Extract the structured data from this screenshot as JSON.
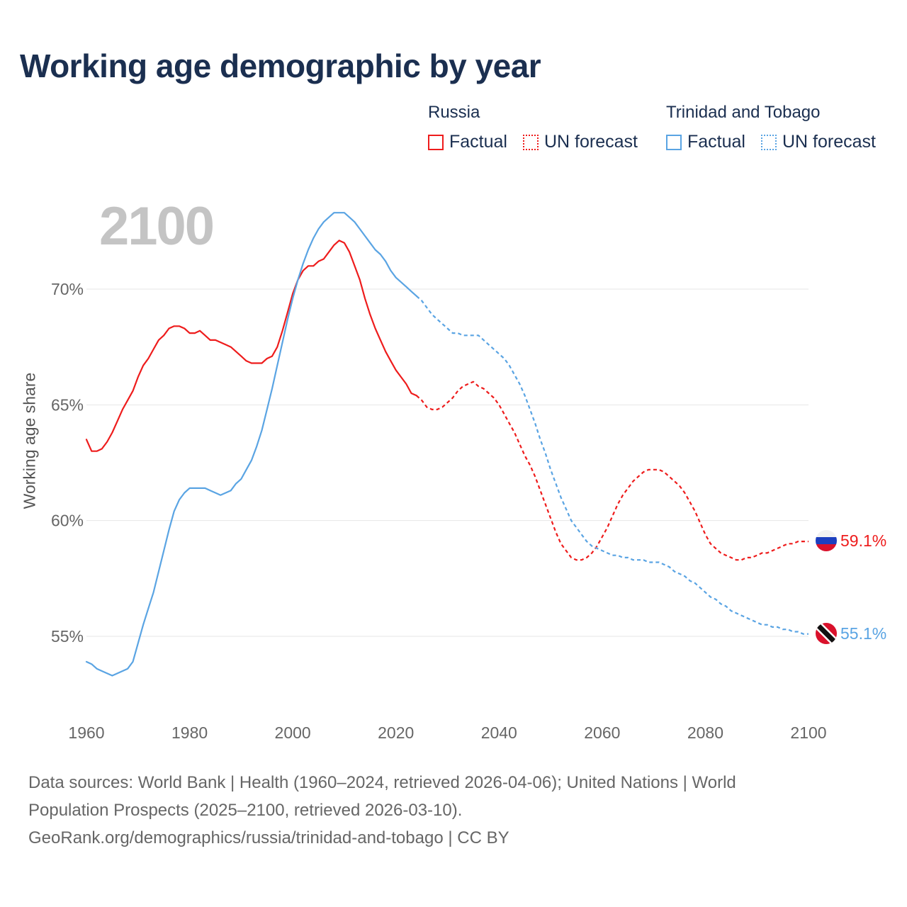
{
  "title": "Working age demographic by year",
  "year_display": "2100",
  "legend": [
    {
      "group": "Russia",
      "factual": "Factual",
      "forecast": "UN forecast",
      "color": "#ee1c1c"
    },
    {
      "group": "Trinidad and Tobago",
      "factual": "Factual",
      "forecast": "UN forecast",
      "color": "#5aa4e3"
    }
  ],
  "footer": {
    "line1": "Data sources: World Bank | Health (1960–2024, retrieved 2026-04-06); United Nations | World",
    "line2": "Population Prospects (2025–2100, retrieved 2026-03-10).",
    "line3": "GeoRank.org/demographics/russia/trinidad-and-tobago | CC BY"
  },
  "chart_data": {
    "type": "line",
    "title": "Working age demographic by year",
    "xlabel": "",
    "ylabel": "Working age share",
    "xlim": [
      1960,
      2100
    ],
    "ylim": [
      52,
      73
    ],
    "x_ticks": [
      1960,
      1980,
      2000,
      2020,
      2040,
      2060,
      2080,
      2100
    ],
    "x_tick_labels": [
      "1960",
      "1980",
      "2000",
      "2020",
      "2040",
      "2060",
      "2080",
      "2100"
    ],
    "y_ticks": [
      55,
      60,
      65,
      70
    ],
    "y_tick_labels": [
      "55%",
      "60%",
      "65%",
      "70%"
    ],
    "grid": true,
    "forecast_start": 2024,
    "series": [
      {
        "name": "Russia",
        "color": "#ee1c1c",
        "end_label": "59.1%",
        "flag": "russia",
        "points": [
          [
            1960,
            63.5
          ],
          [
            1961,
            63.0
          ],
          [
            1962,
            63.0
          ],
          [
            1963,
            63.1
          ],
          [
            1964,
            63.4
          ],
          [
            1965,
            63.8
          ],
          [
            1966,
            64.3
          ],
          [
            1967,
            64.8
          ],
          [
            1968,
            65.2
          ],
          [
            1969,
            65.6
          ],
          [
            1970,
            66.2
          ],
          [
            1971,
            66.7
          ],
          [
            1972,
            67.0
          ],
          [
            1973,
            67.4
          ],
          [
            1974,
            67.8
          ],
          [
            1975,
            68.0
          ],
          [
            1976,
            68.3
          ],
          [
            1977,
            68.4
          ],
          [
            1978,
            68.4
          ],
          [
            1979,
            68.3
          ],
          [
            1980,
            68.1
          ],
          [
            1981,
            68.1
          ],
          [
            1982,
            68.2
          ],
          [
            1983,
            68.0
          ],
          [
            1984,
            67.8
          ],
          [
            1985,
            67.8
          ],
          [
            1986,
            67.7
          ],
          [
            1987,
            67.6
          ],
          [
            1988,
            67.5
          ],
          [
            1989,
            67.3
          ],
          [
            1990,
            67.1
          ],
          [
            1991,
            66.9
          ],
          [
            1992,
            66.8
          ],
          [
            1993,
            66.8
          ],
          [
            1994,
            66.8
          ],
          [
            1995,
            67.0
          ],
          [
            1996,
            67.1
          ],
          [
            1997,
            67.5
          ],
          [
            1998,
            68.2
          ],
          [
            1999,
            69.0
          ],
          [
            2000,
            69.8
          ],
          [
            2001,
            70.4
          ],
          [
            2002,
            70.8
          ],
          [
            2003,
            71.0
          ],
          [
            2004,
            71.0
          ],
          [
            2005,
            71.2
          ],
          [
            2006,
            71.3
          ],
          [
            2007,
            71.6
          ],
          [
            2008,
            71.9
          ],
          [
            2009,
            72.1
          ],
          [
            2010,
            72.0
          ],
          [
            2011,
            71.6
          ],
          [
            2012,
            71.0
          ],
          [
            2013,
            70.4
          ],
          [
            2014,
            69.6
          ],
          [
            2015,
            68.9
          ],
          [
            2016,
            68.3
          ],
          [
            2017,
            67.8
          ],
          [
            2018,
            67.3
          ],
          [
            2019,
            66.9
          ],
          [
            2020,
            66.5
          ],
          [
            2021,
            66.2
          ],
          [
            2022,
            65.9
          ],
          [
            2023,
            65.5
          ],
          [
            2024,
            65.4
          ],
          [
            2025,
            65.2
          ],
          [
            2026,
            64.9
          ],
          [
            2027,
            64.8
          ],
          [
            2028,
            64.8
          ],
          [
            2029,
            64.9
          ],
          [
            2030,
            65.1
          ],
          [
            2031,
            65.3
          ],
          [
            2032,
            65.6
          ],
          [
            2033,
            65.8
          ],
          [
            2034,
            65.9
          ],
          [
            2035,
            66.0
          ],
          [
            2036,
            65.8
          ],
          [
            2037,
            65.7
          ],
          [
            2038,
            65.5
          ],
          [
            2039,
            65.3
          ],
          [
            2040,
            65.0
          ],
          [
            2041,
            64.6
          ],
          [
            2042,
            64.2
          ],
          [
            2043,
            63.8
          ],
          [
            2044,
            63.3
          ],
          [
            2045,
            62.8
          ],
          [
            2046,
            62.4
          ],
          [
            2047,
            61.9
          ],
          [
            2048,
            61.3
          ],
          [
            2049,
            60.7
          ],
          [
            2050,
            60.1
          ],
          [
            2051,
            59.5
          ],
          [
            2052,
            59.0
          ],
          [
            2053,
            58.7
          ],
          [
            2054,
            58.4
          ],
          [
            2055,
            58.3
          ],
          [
            2056,
            58.3
          ],
          [
            2057,
            58.4
          ],
          [
            2058,
            58.6
          ],
          [
            2059,
            58.9
          ],
          [
            2060,
            59.3
          ],
          [
            2061,
            59.7
          ],
          [
            2062,
            60.2
          ],
          [
            2063,
            60.7
          ],
          [
            2064,
            61.1
          ],
          [
            2065,
            61.4
          ],
          [
            2066,
            61.7
          ],
          [
            2067,
            61.9
          ],
          [
            2068,
            62.1
          ],
          [
            2069,
            62.2
          ],
          [
            2070,
            62.2
          ],
          [
            2071,
            62.2
          ],
          [
            2072,
            62.1
          ],
          [
            2073,
            61.9
          ],
          [
            2074,
            61.7
          ],
          [
            2075,
            61.5
          ],
          [
            2076,
            61.2
          ],
          [
            2077,
            60.8
          ],
          [
            2078,
            60.4
          ],
          [
            2079,
            59.9
          ],
          [
            2080,
            59.4
          ],
          [
            2081,
            59.0
          ],
          [
            2082,
            58.8
          ],
          [
            2083,
            58.6
          ],
          [
            2084,
            58.5
          ],
          [
            2085,
            58.4
          ],
          [
            2086,
            58.3
          ],
          [
            2087,
            58.3
          ],
          [
            2088,
            58.4
          ],
          [
            2089,
            58.4
          ],
          [
            2090,
            58.5
          ],
          [
            2091,
            58.6
          ],
          [
            2092,
            58.6
          ],
          [
            2093,
            58.7
          ],
          [
            2094,
            58.8
          ],
          [
            2095,
            58.9
          ],
          [
            2096,
            59.0
          ],
          [
            2097,
            59.0
          ],
          [
            2098,
            59.1
          ],
          [
            2099,
            59.1
          ],
          [
            2100,
            59.1
          ]
        ]
      },
      {
        "name": "Trinidad and Tobago",
        "color": "#5aa4e3",
        "end_label": "55.1%",
        "flag": "trinidad",
        "points": [
          [
            1960,
            53.9
          ],
          [
            1961,
            53.8
          ],
          [
            1962,
            53.6
          ],
          [
            1963,
            53.5
          ],
          [
            1964,
            53.4
          ],
          [
            1965,
            53.3
          ],
          [
            1966,
            53.4
          ],
          [
            1967,
            53.5
          ],
          [
            1968,
            53.6
          ],
          [
            1969,
            53.9
          ],
          [
            1970,
            54.7
          ],
          [
            1971,
            55.5
          ],
          [
            1972,
            56.2
          ],
          [
            1973,
            56.9
          ],
          [
            1974,
            57.8
          ],
          [
            1975,
            58.7
          ],
          [
            1976,
            59.6
          ],
          [
            1977,
            60.4
          ],
          [
            1978,
            60.9
          ],
          [
            1979,
            61.2
          ],
          [
            1980,
            61.4
          ],
          [
            1981,
            61.4
          ],
          [
            1982,
            61.4
          ],
          [
            1983,
            61.4
          ],
          [
            1984,
            61.3
          ],
          [
            1985,
            61.2
          ],
          [
            1986,
            61.1
          ],
          [
            1987,
            61.2
          ],
          [
            1988,
            61.3
          ],
          [
            1989,
            61.6
          ],
          [
            1990,
            61.8
          ],
          [
            1991,
            62.2
          ],
          [
            1992,
            62.6
          ],
          [
            1993,
            63.2
          ],
          [
            1994,
            63.9
          ],
          [
            1995,
            64.8
          ],
          [
            1996,
            65.7
          ],
          [
            1997,
            66.7
          ],
          [
            1998,
            67.7
          ],
          [
            1999,
            68.7
          ],
          [
            2000,
            69.6
          ],
          [
            2001,
            70.4
          ],
          [
            2002,
            71.1
          ],
          [
            2003,
            71.7
          ],
          [
            2004,
            72.2
          ],
          [
            2005,
            72.6
          ],
          [
            2006,
            72.9
          ],
          [
            2007,
            73.1
          ],
          [
            2008,
            73.3
          ],
          [
            2009,
            73.3
          ],
          [
            2010,
            73.3
          ],
          [
            2011,
            73.1
          ],
          [
            2012,
            72.9
          ],
          [
            2013,
            72.6
          ],
          [
            2014,
            72.3
          ],
          [
            2015,
            72.0
          ],
          [
            2016,
            71.7
          ],
          [
            2017,
            71.5
          ],
          [
            2018,
            71.2
          ],
          [
            2019,
            70.8
          ],
          [
            2020,
            70.5
          ],
          [
            2021,
            70.3
          ],
          [
            2022,
            70.1
          ],
          [
            2023,
            69.9
          ],
          [
            2024,
            69.7
          ],
          [
            2025,
            69.5
          ],
          [
            2026,
            69.2
          ],
          [
            2027,
            68.9
          ],
          [
            2028,
            68.7
          ],
          [
            2029,
            68.5
          ],
          [
            2030,
            68.3
          ],
          [
            2031,
            68.1
          ],
          [
            2032,
            68.1
          ],
          [
            2033,
            68.0
          ],
          [
            2034,
            68.0
          ],
          [
            2035,
            68.0
          ],
          [
            2036,
            68.0
          ],
          [
            2037,
            67.8
          ],
          [
            2038,
            67.6
          ],
          [
            2039,
            67.4
          ],
          [
            2040,
            67.2
          ],
          [
            2041,
            67.0
          ],
          [
            2042,
            66.7
          ],
          [
            2043,
            66.3
          ],
          [
            2044,
            65.9
          ],
          [
            2045,
            65.4
          ],
          [
            2046,
            64.8
          ],
          [
            2047,
            64.2
          ],
          [
            2048,
            63.5
          ],
          [
            2049,
            62.9
          ],
          [
            2050,
            62.2
          ],
          [
            2051,
            61.6
          ],
          [
            2052,
            61.0
          ],
          [
            2053,
            60.5
          ],
          [
            2054,
            60.0
          ],
          [
            2055,
            59.7
          ],
          [
            2056,
            59.4
          ],
          [
            2057,
            59.1
          ],
          [
            2058,
            58.9
          ],
          [
            2059,
            58.8
          ],
          [
            2060,
            58.7
          ],
          [
            2061,
            58.6
          ],
          [
            2062,
            58.5
          ],
          [
            2063,
            58.5
          ],
          [
            2064,
            58.4
          ],
          [
            2065,
            58.4
          ],
          [
            2066,
            58.3
          ],
          [
            2067,
            58.3
          ],
          [
            2068,
            58.3
          ],
          [
            2069,
            58.2
          ],
          [
            2070,
            58.2
          ],
          [
            2071,
            58.2
          ],
          [
            2072,
            58.1
          ],
          [
            2073,
            58.0
          ],
          [
            2074,
            57.8
          ],
          [
            2075,
            57.7
          ],
          [
            2076,
            57.6
          ],
          [
            2077,
            57.4
          ],
          [
            2078,
            57.3
          ],
          [
            2079,
            57.1
          ],
          [
            2080,
            56.9
          ],
          [
            2081,
            56.7
          ],
          [
            2082,
            56.6
          ],
          [
            2083,
            56.4
          ],
          [
            2084,
            56.3
          ],
          [
            2085,
            56.1
          ],
          [
            2086,
            56.0
          ],
          [
            2087,
            55.9
          ],
          [
            2088,
            55.8
          ],
          [
            2089,
            55.7
          ],
          [
            2090,
            55.6
          ],
          [
            2091,
            55.5
          ],
          [
            2092,
            55.5
          ],
          [
            2093,
            55.4
          ],
          [
            2094,
            55.4
          ],
          [
            2095,
            55.3
          ],
          [
            2096,
            55.3
          ],
          [
            2097,
            55.2
          ],
          [
            2098,
            55.2
          ],
          [
            2099,
            55.1
          ],
          [
            2100,
            55.1
          ]
        ]
      }
    ]
  }
}
